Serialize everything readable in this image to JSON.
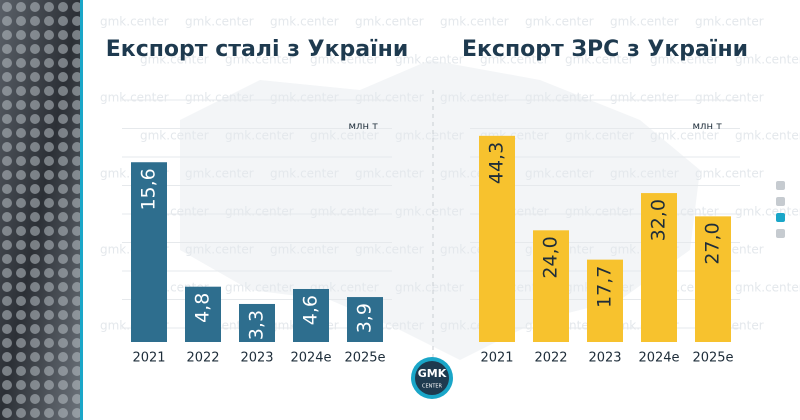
{
  "chart_data": [
    {
      "type": "bar",
      "title": "Експорт сталі з України",
      "unit": "млн т",
      "categories": [
        "2021",
        "2022",
        "2023",
        "2024е",
        "2025е"
      ],
      "values": [
        15.6,
        4.8,
        3.3,
        4.6,
        3.9
      ],
      "value_labels": [
        "15,6",
        "4,8",
        "3,3",
        "4,6",
        "3,9"
      ],
      "color": "#2e6e8e",
      "label_color": "#ffffff",
      "ylim": [
        0,
        21
      ]
    },
    {
      "type": "bar",
      "title": "Експорт ЗРС з України",
      "unit": "млн т",
      "categories": [
        "2021",
        "2022",
        "2023",
        "2024е",
        "2025е"
      ],
      "values": [
        44.3,
        24.0,
        17.7,
        32.0,
        27.0
      ],
      "value_labels": [
        "44,3",
        "24,0",
        "17,7",
        "32,0",
        "27,0"
      ],
      "color": "#f7c22e",
      "label_color": "#1e2d3a",
      "ylim": [
        0,
        52
      ]
    }
  ],
  "watermark": "gmk.center",
  "logo": {
    "top": "GMK",
    "bottom": "CENTER"
  }
}
